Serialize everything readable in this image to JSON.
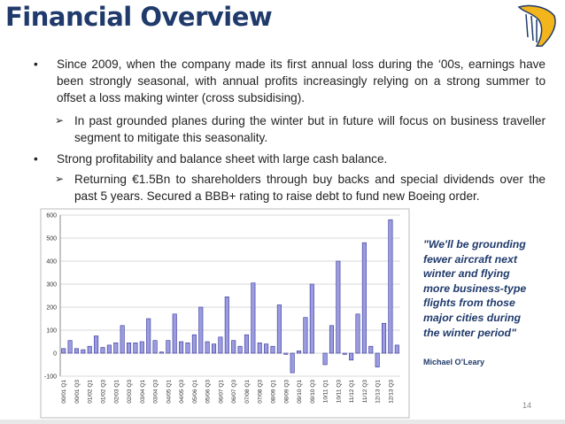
{
  "header": {
    "title": "Financial Overview"
  },
  "bullets": [
    {
      "text": "Since 2009, when the company made its first annual loss during the ‘00s, earnings have been strongly seasonal, with annual profits increasingly relying on a strong summer to offset a loss making winter (cross subsidising).",
      "sub": [
        "In past grounded planes during the winter but in future will focus on business traveller segment to mitigate this seasonality."
      ]
    },
    {
      "text": "Strong profitability and balance sheet with large cash balance.",
      "sub": [
        "Returning €1.5Bn to shareholders through buy backs and special dividends over the past 5 years. Secured a BBB+ rating to raise debt to fund new Boeing order."
      ]
    }
  ],
  "quote": {
    "text": "\"We'll be grounding fewer aircraft next winter and flying more business-type flights from those major cities during the winter period\"",
    "author": "Michael O’Leary"
  },
  "page_number": "14",
  "chart_data": {
    "type": "bar",
    "categories": [
      "00/01 Q1",
      null,
      "00/01 Q3",
      null,
      "01/02 Q1",
      null,
      "01/02 Q3",
      null,
      "02/03 Q1",
      null,
      "02/03 Q3",
      null,
      "03/04 Q1",
      null,
      "03/04 Q3",
      null,
      "04/05 Q1",
      null,
      "04/05 Q3",
      null,
      "05/06 Q1",
      null,
      "05/06 Q3",
      null,
      "06/07 Q1",
      null,
      "06/07 Q3",
      null,
      "07/08 Q1",
      null,
      "07/08 Q3",
      null,
      "08/09 Q1",
      null,
      "08/09 Q3",
      null,
      "09/10 Q1",
      null,
      "09/10 Q3",
      null,
      "10/11 Q1",
      null,
      "10/11 Q3",
      null,
      "11/12 Q1",
      null,
      "11/12 Q3",
      null,
      "12/13 Q1",
      null,
      "12/13 Q3",
      null
    ],
    "values": [
      20,
      55,
      20,
      15,
      30,
      75,
      25,
      35,
      45,
      120,
      45,
      45,
      50,
      150,
      55,
      5,
      55,
      170,
      50,
      45,
      80,
      200,
      50,
      40,
      70,
      245,
      55,
      30,
      80,
      305,
      45,
      40,
      30,
      210,
      -5,
      -85,
      10,
      155,
      300,
      0,
      -50,
      120,
      400,
      -5,
      -30,
      170,
      480,
      30,
      -60,
      130,
      580,
      35
    ],
    "color": "#9b9be0",
    "edge_color": "#333399",
    "ylim": [
      -100,
      600
    ],
    "yticks": [
      -100,
      0,
      100,
      200,
      300,
      400,
      500,
      600
    ],
    "grid": true
  }
}
